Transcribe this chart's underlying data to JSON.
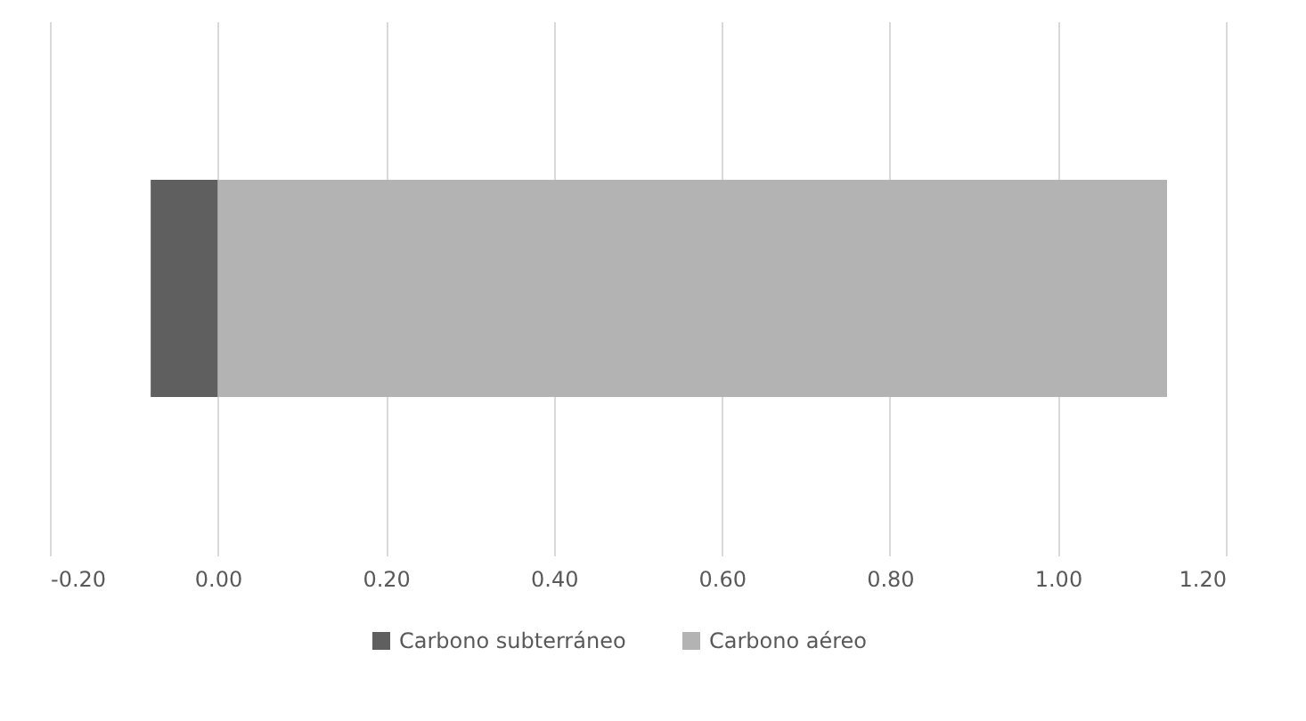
{
  "chart_data": {
    "type": "bar",
    "orientation": "horizontal",
    "stacked": true,
    "categories": [
      null
    ],
    "series": [
      {
        "name": "Carbono subterráneo",
        "color": "#5f5f5f",
        "values": [
          -0.08
        ]
      },
      {
        "name": "Carbono aéreo",
        "color": "#b3b3b3",
        "values": [
          1.13
        ]
      }
    ],
    "xlim": [
      -0.2,
      1.2
    ],
    "xticks": [
      {
        "value": -0.2,
        "label": "-0.20"
      },
      {
        "value": 0,
        "label": "0.00"
      },
      {
        "value": 0.2,
        "label": "0.20"
      },
      {
        "value": 0.4,
        "label": "0.40"
      },
      {
        "value": 0.6,
        "label": "0.60"
      },
      {
        "value": 0.8,
        "label": "0.80"
      },
      {
        "value": 1.0,
        "label": "1.00"
      },
      {
        "value": 1.2,
        "label": "1.20"
      }
    ],
    "grid": "x",
    "legend": "bottom"
  }
}
